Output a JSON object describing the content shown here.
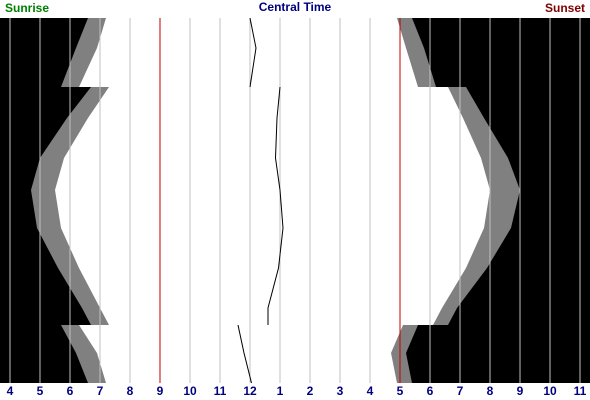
{
  "chart_data": {
    "type": "daylight",
    "left_label": "Sunrise",
    "title": "Central Time",
    "right_label": "Sunset",
    "x": [
      0,
      30,
      69,
      69,
      100,
      140,
      172,
      210,
      250,
      290,
      307,
      307,
      335,
      365
    ],
    "xlim": [
      0,
      365
    ],
    "ylim": [
      3.667,
      23.333
    ],
    "yticks": [
      4,
      5,
      6,
      7,
      8,
      9,
      10,
      11,
      12,
      {
        "value": 13,
        "label": "1"
      },
      {
        "value": 14,
        "label": "2"
      },
      {
        "value": 15,
        "label": "3"
      },
      {
        "value": 16,
        "label": "4"
      },
      {
        "value": 17,
        "label": "5"
      },
      {
        "value": 18,
        "label": "6"
      },
      {
        "value": 19,
        "label": "7"
      },
      {
        "value": 20,
        "label": "8"
      },
      {
        "value": 21,
        "label": "9"
      },
      {
        "value": 22,
        "label": "10"
      },
      {
        "value": 23,
        "label": "11"
      }
    ],
    "grid": true,
    "grid_color": "#c0c0c0",
    "reference_lines": [
      {
        "value": 9,
        "color": "#c00000"
      },
      {
        "value": 17,
        "color": "#c00000"
      }
    ],
    "series": [
      {
        "role": "dawn",
        "side": "left",
        "color": "#000000",
        "values": [
          6.6,
          6.2,
          5.7,
          6.7,
          5.9,
          5.0,
          4.7,
          4.9,
          5.6,
          6.4,
          6.7,
          5.7,
          6.2,
          6.6
        ]
      },
      {
        "role": "sunrise",
        "side": "left",
        "color": "#808080",
        "values": [
          7.2,
          6.9,
          6.3,
          7.3,
          6.6,
          5.8,
          5.5,
          5.7,
          6.3,
          7.0,
          7.3,
          6.3,
          6.9,
          7.2
        ]
      },
      {
        "role": "sunset",
        "side": "right",
        "color": "#808080",
        "values": [
          16.9,
          17.2,
          17.6,
          18.6,
          19.1,
          19.7,
          20.0,
          19.8,
          19.2,
          18.4,
          18.1,
          17.1,
          16.7,
          16.9
        ]
      },
      {
        "role": "dusk",
        "side": "right",
        "color": "#000000",
        "values": [
          17.4,
          17.8,
          18.2,
          19.2,
          19.8,
          20.6,
          21.0,
          20.7,
          19.9,
          18.9,
          18.6,
          17.6,
          17.2,
          17.4
        ]
      },
      {
        "role": "noon",
        "side": "line",
        "color": "#000000",
        "values": [
          12.0,
          12.2,
          12.0,
          13.0,
          12.9,
          12.85,
          13.0,
          13.1,
          12.95,
          12.6,
          12.6,
          11.6,
          11.8,
          12.05
        ]
      }
    ]
  }
}
